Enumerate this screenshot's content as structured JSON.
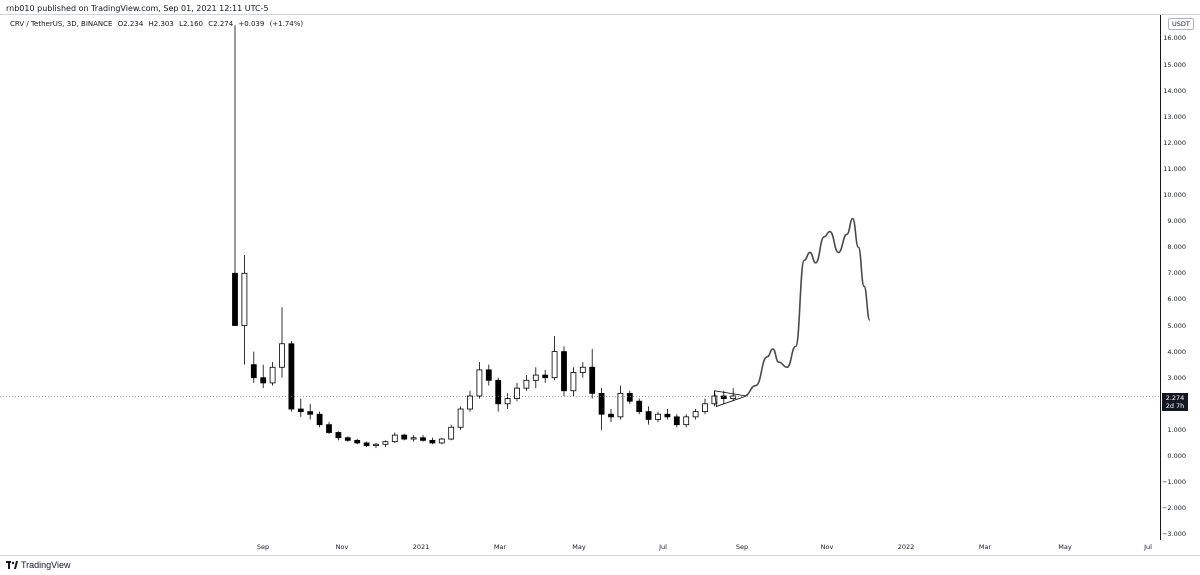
{
  "header": {
    "published_text": "rnb010 published on TradingView.com, Sep 01, 2021 12:11 UTC-5"
  },
  "symbol": {
    "name": "CRV / TetherUS, 3D, BINANCE",
    "open": "O2.234",
    "high": "H2.303",
    "low": "L2.160",
    "close": "C2.274",
    "change": "+0.039",
    "change_pct": "(+1.74%)"
  },
  "currency_badge": "USDT",
  "last_price": {
    "value": "2.274",
    "countdown": "2d 7h"
  },
  "price_axis": {
    "ticks": [
      "16.000",
      "15.000",
      "14.000",
      "13.000",
      "12.000",
      "11.000",
      "10.000",
      "9.000",
      "8.000",
      "7.000",
      "6.000",
      "5.000",
      "4.000",
      "3.000",
      "2.000",
      "1.000",
      "0.000",
      "−1.000",
      "−2.000",
      "−3.000"
    ]
  },
  "time_axis": {
    "ticks": [
      "Sep",
      "Nov",
      "2021",
      "Mar",
      "May",
      "Jul",
      "Sep",
      "Nov",
      "2022",
      "Mar",
      "May",
      "Jul"
    ]
  },
  "footer": {
    "brand": "TradingView"
  },
  "colors": {
    "up": "#ffffff",
    "down": "#000000",
    "projection": "#4a4a4a",
    "dotted_line": "#787b86"
  },
  "chart_data": {
    "type": "candlestick",
    "title": "CRV / TetherUS, 3D, BINANCE",
    "ylim": [
      -3,
      16.5
    ],
    "ohlc_approx": [
      {
        "o": 7.0,
        "h": 16.5,
        "l": 5.0,
        "c": 5.0
      },
      {
        "o": 5.0,
        "h": 7.7,
        "l": 3.5,
        "c": 7.0
      },
      {
        "o": 3.5,
        "h": 4.0,
        "l": 2.8,
        "c": 3.0
      },
      {
        "o": 3.0,
        "h": 3.5,
        "l": 2.6,
        "c": 2.8
      },
      {
        "o": 2.8,
        "h": 3.6,
        "l": 2.7,
        "c": 3.4
      },
      {
        "o": 3.4,
        "h": 5.7,
        "l": 3.0,
        "c": 4.3
      },
      {
        "o": 4.3,
        "h": 4.4,
        "l": 1.7,
        "c": 1.8
      },
      {
        "o": 1.8,
        "h": 2.2,
        "l": 1.5,
        "c": 1.7
      },
      {
        "o": 1.7,
        "h": 2.0,
        "l": 1.4,
        "c": 1.6
      },
      {
        "o": 1.6,
        "h": 1.7,
        "l": 1.1,
        "c": 1.2
      },
      {
        "o": 1.2,
        "h": 1.3,
        "l": 0.85,
        "c": 0.9
      },
      {
        "o": 0.9,
        "h": 0.95,
        "l": 0.6,
        "c": 0.7
      },
      {
        "o": 0.7,
        "h": 0.75,
        "l": 0.55,
        "c": 0.6
      },
      {
        "o": 0.6,
        "h": 0.65,
        "l": 0.45,
        "c": 0.5
      },
      {
        "o": 0.5,
        "h": 0.55,
        "l": 0.35,
        "c": 0.4
      },
      {
        "o": 0.4,
        "h": 0.5,
        "l": 0.3,
        "c": 0.45
      },
      {
        "o": 0.45,
        "h": 0.6,
        "l": 0.35,
        "c": 0.55
      },
      {
        "o": 0.55,
        "h": 0.9,
        "l": 0.5,
        "c": 0.8
      },
      {
        "o": 0.8,
        "h": 0.85,
        "l": 0.6,
        "c": 0.65
      },
      {
        "o": 0.65,
        "h": 0.8,
        "l": 0.55,
        "c": 0.7
      },
      {
        "o": 0.7,
        "h": 0.8,
        "l": 0.55,
        "c": 0.6
      },
      {
        "o": 0.6,
        "h": 0.7,
        "l": 0.45,
        "c": 0.5
      },
      {
        "o": 0.5,
        "h": 0.7,
        "l": 0.45,
        "c": 0.65
      },
      {
        "o": 0.65,
        "h": 1.2,
        "l": 0.6,
        "c": 1.1
      },
      {
        "o": 1.1,
        "h": 1.9,
        "l": 1.0,
        "c": 1.8
      },
      {
        "o": 1.8,
        "h": 2.5,
        "l": 1.7,
        "c": 2.3
      },
      {
        "o": 2.3,
        "h": 3.6,
        "l": 2.2,
        "c": 3.3
      },
      {
        "o": 3.3,
        "h": 3.5,
        "l": 2.7,
        "c": 2.9
      },
      {
        "o": 2.9,
        "h": 3.0,
        "l": 1.7,
        "c": 2.0
      },
      {
        "o": 2.0,
        "h": 2.4,
        "l": 1.8,
        "c": 2.2
      },
      {
        "o": 2.2,
        "h": 2.8,
        "l": 2.1,
        "c": 2.6
      },
      {
        "o": 2.6,
        "h": 3.1,
        "l": 2.5,
        "c": 2.9
      },
      {
        "o": 2.9,
        "h": 3.4,
        "l": 2.6,
        "c": 3.1
      },
      {
        "o": 3.1,
        "h": 3.3,
        "l": 2.8,
        "c": 3.0
      },
      {
        "o": 3.0,
        "h": 4.6,
        "l": 2.9,
        "c": 4.0
      },
      {
        "o": 4.0,
        "h": 4.2,
        "l": 2.3,
        "c": 2.5
      },
      {
        "o": 2.5,
        "h": 3.4,
        "l": 2.3,
        "c": 3.2
      },
      {
        "o": 3.2,
        "h": 3.6,
        "l": 3.0,
        "c": 3.4
      },
      {
        "o": 3.4,
        "h": 4.1,
        "l": 2.2,
        "c": 2.4
      },
      {
        "o": 2.4,
        "h": 2.6,
        "l": 1.0,
        "c": 1.6
      },
      {
        "o": 1.6,
        "h": 1.8,
        "l": 1.3,
        "c": 1.5
      },
      {
        "o": 1.5,
        "h": 2.7,
        "l": 1.4,
        "c": 2.4
      },
      {
        "o": 2.4,
        "h": 2.5,
        "l": 2.0,
        "c": 2.1
      },
      {
        "o": 2.1,
        "h": 2.2,
        "l": 1.6,
        "c": 1.7
      },
      {
        "o": 1.7,
        "h": 1.9,
        "l": 1.2,
        "c": 1.4
      },
      {
        "o": 1.4,
        "h": 1.7,
        "l": 1.3,
        "c": 1.6
      },
      {
        "o": 1.6,
        "h": 1.8,
        "l": 1.4,
        "c": 1.5
      },
      {
        "o": 1.5,
        "h": 1.6,
        "l": 1.1,
        "c": 1.2
      },
      {
        "o": 1.2,
        "h": 1.6,
        "l": 1.1,
        "c": 1.5
      },
      {
        "o": 1.5,
        "h": 1.8,
        "l": 1.4,
        "c": 1.7
      },
      {
        "o": 1.7,
        "h": 2.2,
        "l": 1.6,
        "c": 2.0
      },
      {
        "o": 2.0,
        "h": 2.5,
        "l": 1.9,
        "c": 2.3
      },
      {
        "o": 2.3,
        "h": 2.5,
        "l": 2.0,
        "c": 2.2
      },
      {
        "o": 2.2,
        "h": 2.6,
        "l": 2.1,
        "c": 2.3
      }
    ],
    "projection_path_prices": [
      [
        0,
        2.3
      ],
      [
        4,
        2.7
      ],
      [
        8,
        3.8
      ],
      [
        10,
        4.1
      ],
      [
        12,
        3.6
      ],
      [
        15,
        3.4
      ],
      [
        18,
        4.2
      ],
      [
        21,
        7.5
      ],
      [
        23,
        7.8
      ],
      [
        25,
        7.4
      ],
      [
        28,
        8.4
      ],
      [
        30,
        8.6
      ],
      [
        33,
        7.8
      ],
      [
        36,
        8.5
      ],
      [
        38,
        9.1
      ],
      [
        40,
        8.0
      ],
      [
        42,
        6.5
      ],
      [
        44,
        5.2
      ]
    ],
    "last_price": 2.274
  }
}
